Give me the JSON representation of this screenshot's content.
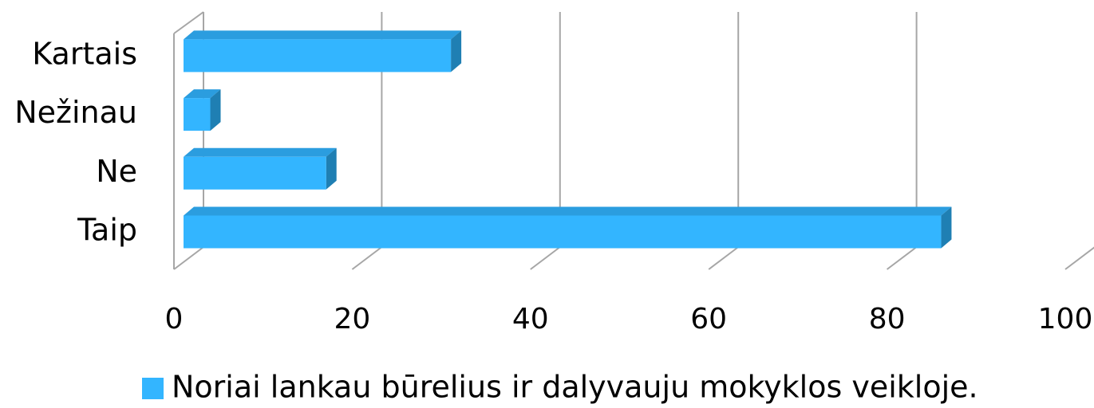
{
  "chart_data": {
    "type": "bar3d_horizontal",
    "categories": [
      "Taip",
      "Ne",
      "Nežinau",
      "Kartais"
    ],
    "series": [
      {
        "name": "Noriai lankau būrelius ir dalyvauju mokyklos veikloje.",
        "color": "#33b5ff",
        "values": [
          85,
          16,
          3,
          30
        ]
      }
    ],
    "xlim": [
      0,
      100
    ],
    "xticks": [
      0,
      20,
      40,
      60,
      80,
      100
    ],
    "grid": true,
    "legend": "bottom"
  }
}
